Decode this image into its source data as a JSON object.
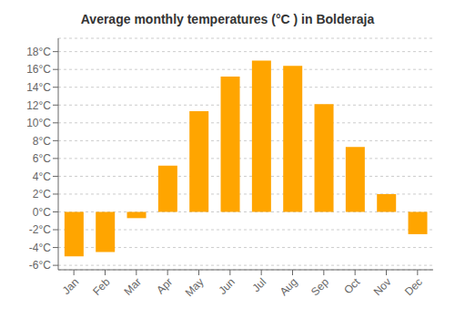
{
  "chart_data": {
    "type": "bar",
    "title": "Average monthly temperatures (°C ) in Bolderaja",
    "categories": [
      "Jan",
      "Feb",
      "Mar",
      "Apr",
      "May",
      "Jun",
      "Jul",
      "Aug",
      "Sep",
      "Oct",
      "Nov",
      "Dec"
    ],
    "values": [
      -5.0,
      -4.5,
      -0.7,
      5.2,
      11.3,
      15.2,
      17.0,
      16.4,
      12.1,
      7.3,
      2.0,
      -2.5
    ],
    "color": "#FFA500",
    "ylim": [
      -6.5,
      19.5
    ],
    "yticks": [
      {
        "value": -6,
        "label": "-6°C"
      },
      {
        "value": -4,
        "label": "-4°C"
      },
      {
        "value": -2,
        "label": "-2°C"
      },
      {
        "value": 0,
        "label": "0°C"
      },
      {
        "value": 2,
        "label": "2°C"
      },
      {
        "value": 4,
        "label": "4°C"
      },
      {
        "value": 6,
        "label": "6°C"
      },
      {
        "value": 8,
        "label": "8°C"
      },
      {
        "value": 10,
        "label": "10°C"
      },
      {
        "value": 12,
        "label": "12°C"
      },
      {
        "value": 14,
        "label": "14°C"
      },
      {
        "value": 16,
        "label": "16°C"
      },
      {
        "value": 18,
        "label": "18°C"
      }
    ],
    "grid": true
  }
}
